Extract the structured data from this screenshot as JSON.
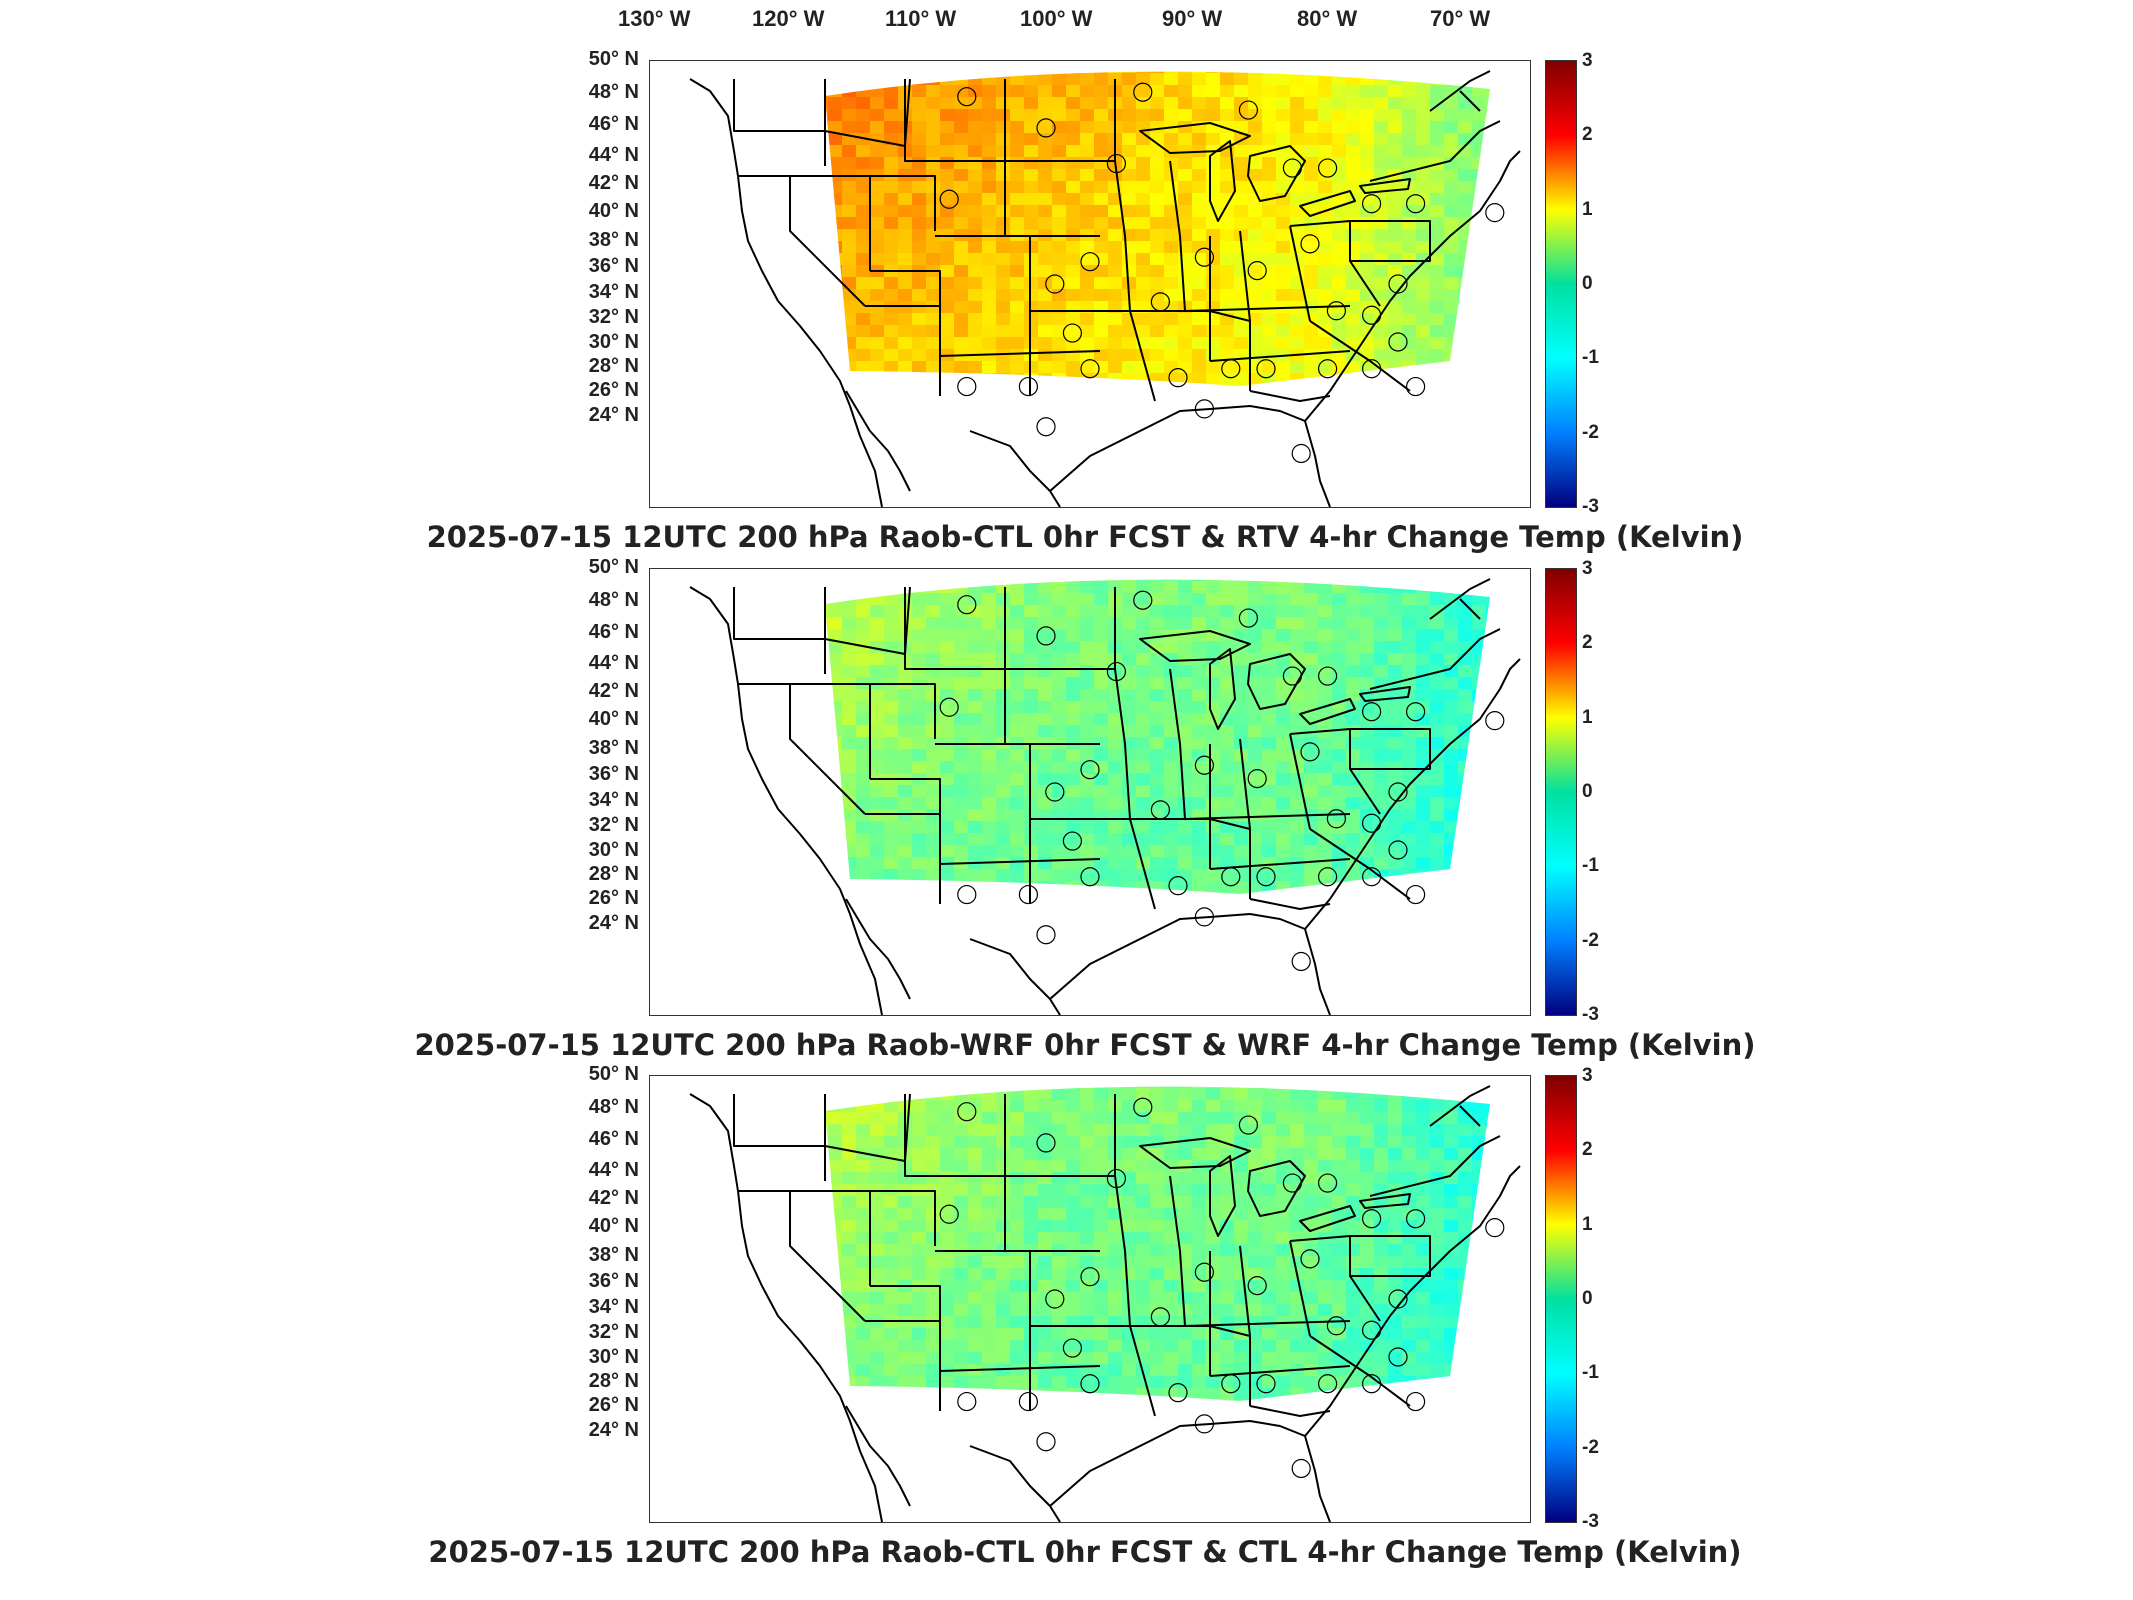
{
  "lon_labels": [
    "130° W",
    "120° W",
    "110° W",
    "100° W",
    "90° W",
    "80° W",
    "70° W"
  ],
  "lat_labels": [
    "50° N",
    "48° N",
    "46° N",
    "44° N",
    "42° N",
    "40° N",
    "38° N",
    "36° N",
    "34° N",
    "32° N",
    "30° N",
    "28° N",
    "26° N",
    "24° N"
  ],
  "colorbar": {
    "ticks": [
      "3",
      "2",
      "1",
      "0",
      "-1",
      "-2",
      "-3"
    ],
    "colors": [
      "#800000",
      "#ff0000",
      "#ffff00",
      "#00e0a0",
      "#00ffff",
      "#0080ff",
      "#000080"
    ],
    "range": [
      -3,
      3
    ],
    "colormap": "jet"
  },
  "panels": [
    {
      "title": "2025-07-15 12UTC 200 hPa Raob-CTL 0hr FCST & RTV 4-hr Change Temp (Kelvin)",
      "field_bias": "warm-west"
    },
    {
      "title": "2025-07-15 12UTC 200 hPa Raob-WRF 0hr FCST & WRF 4-hr Change Temp (Kelvin)",
      "field_bias": "neutral"
    },
    {
      "title": "2025-07-15 12UTC 200 hPa Raob-CTL 0hr FCST & CTL 4-hr Change Temp (Kelvin)",
      "field_bias": "neutral"
    }
  ]
}
